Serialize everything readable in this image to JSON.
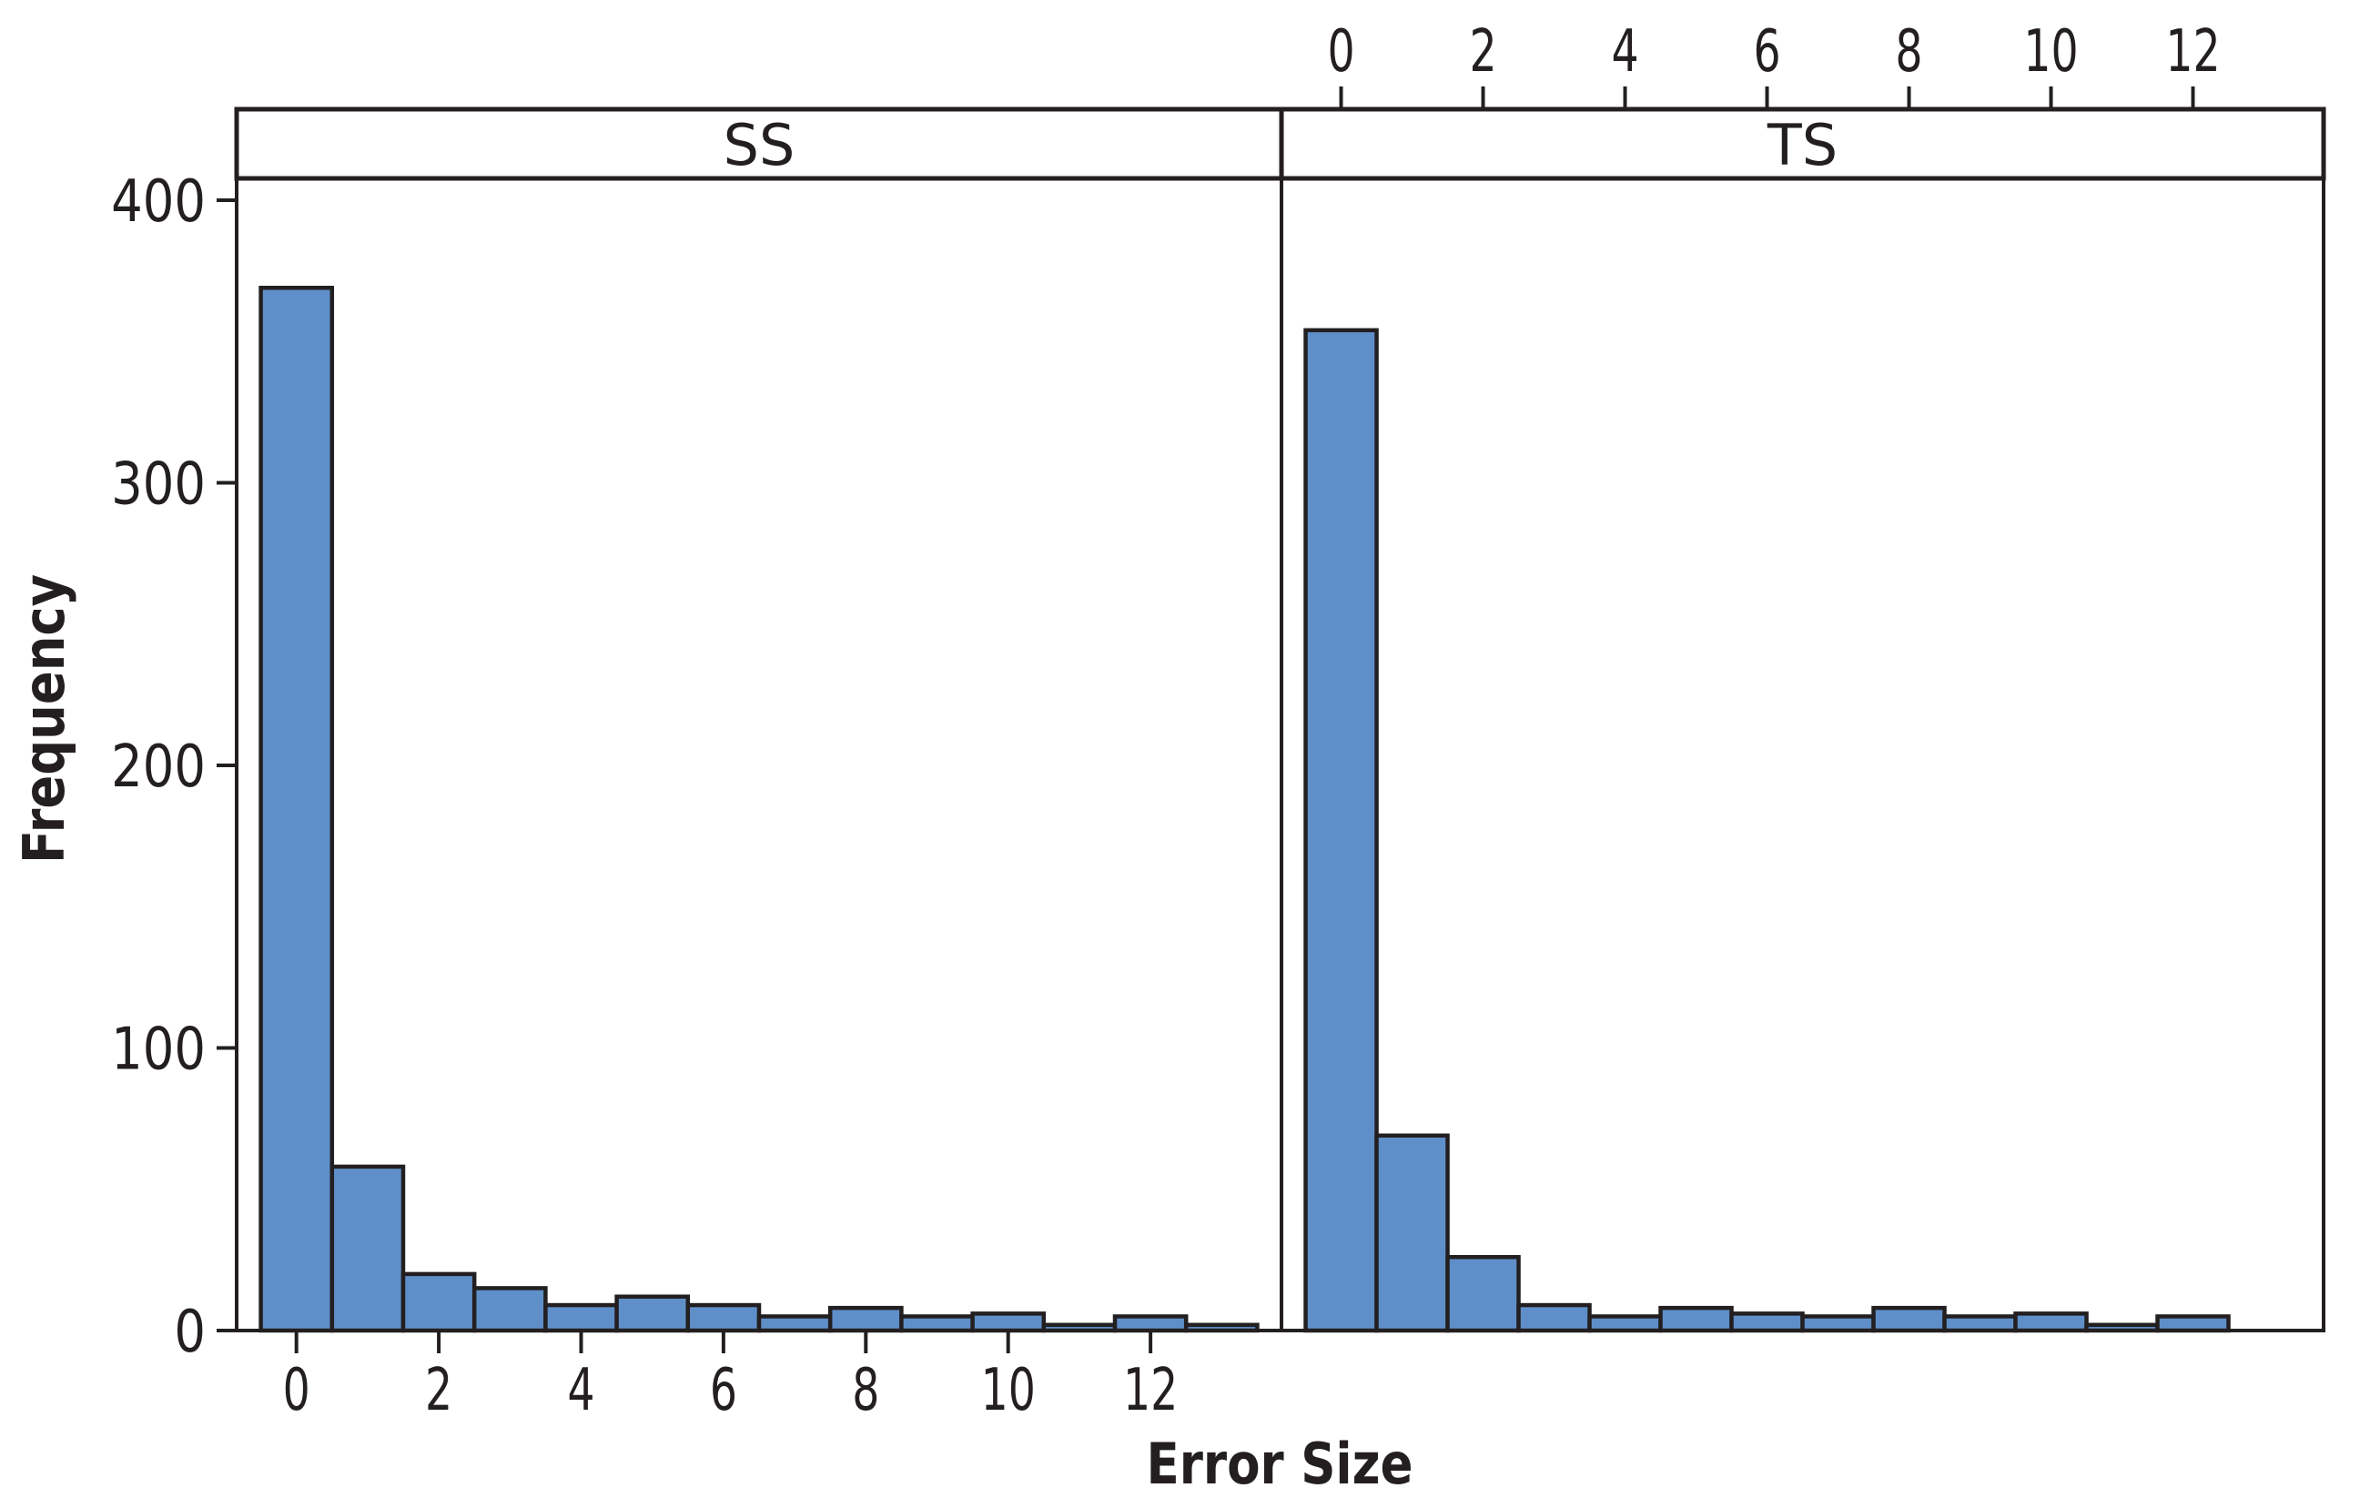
{
  "chart_data": {
    "type": "bar",
    "subtype": "histogram-faceted",
    "xlabel": "Error Size",
    "ylabel": "Frequency",
    "ylim": [
      0,
      407
    ],
    "xlim": [
      -0.84,
      13.84
    ],
    "y_ticks": [
      0,
      100,
      200,
      300,
      400
    ],
    "x_ticks": [
      0,
      2,
      4,
      6,
      8,
      10,
      12
    ],
    "grid": false,
    "legend": null,
    "bin_width": 1,
    "bin_centers": [
      0,
      1,
      2,
      3,
      4,
      5,
      6,
      7,
      8,
      9,
      10,
      11,
      12,
      13
    ],
    "colors": {
      "bar_fill": "#5f8fc9",
      "bar_outline": "#231f20",
      "axis": "#231f20",
      "background": "#ffffff"
    },
    "panels": [
      {
        "name": "SS",
        "x_axis_position": "bottom",
        "x": [
          0,
          1,
          2,
          3,
          4,
          5,
          6,
          7,
          8,
          9,
          10,
          11,
          12,
          13
        ],
        "values": [
          369,
          58,
          20,
          15,
          9,
          12,
          9,
          5,
          8,
          5,
          6,
          2,
          5,
          2
        ]
      },
      {
        "name": "TS",
        "x_axis_position": "top",
        "x": [
          0,
          1,
          2,
          3,
          4,
          5,
          6,
          7,
          8,
          9,
          10,
          11,
          12
        ],
        "values": [
          354,
          69,
          26,
          9,
          5,
          8,
          6,
          5,
          8,
          5,
          6,
          2,
          5
        ]
      }
    ]
  },
  "labels": {
    "xlabel": "Error Size",
    "ylabel": "Frequency",
    "panel_ss": "SS",
    "panel_ts": "TS"
  }
}
